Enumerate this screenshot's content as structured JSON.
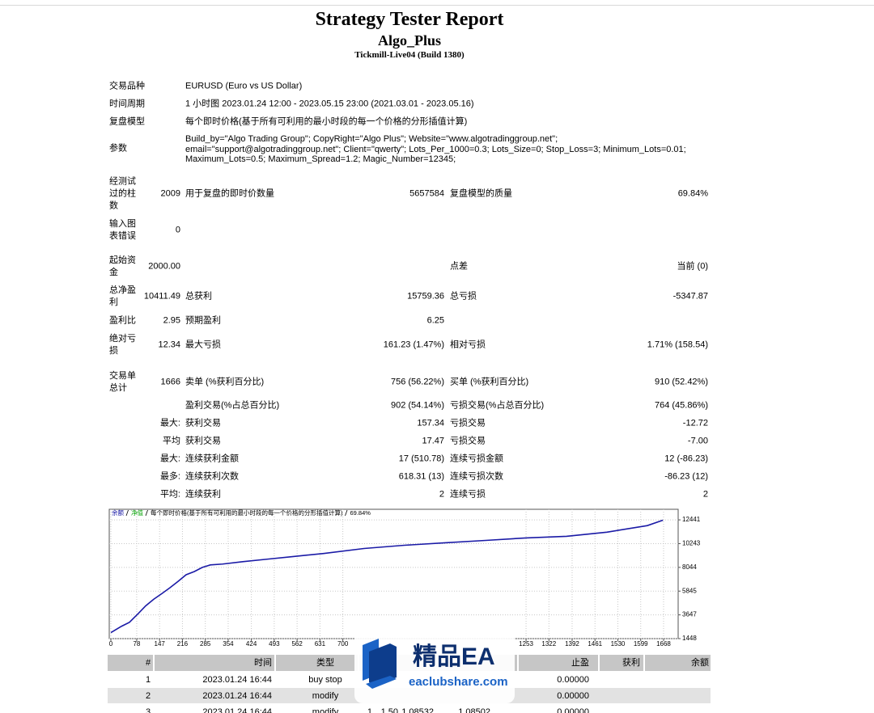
{
  "header": {
    "title": "Strategy Tester Report",
    "subtitle": "Algo_Plus",
    "server": "Tickmill-Live04 (Build 1380)"
  },
  "info": [
    {
      "label": "交易品种",
      "value": "EURUSD (Euro vs US Dollar)"
    },
    {
      "label": "时间周期",
      "value": "1 小时图 2023.01.24 12:00 - 2023.05.15 23:00 (2021.03.01 - 2023.05.16)"
    },
    {
      "label": "复盘模型",
      "value": "每个即时价格(基于所有可利用的最小时段的每一个价格的分形插值计算)"
    }
  ],
  "parameters": {
    "label": "参数",
    "lines": [
      "Build_by=\"Algo Trading Group\"; CopyRight=\"Algo Plus\"; Website=\"www.algotradinggroup.net\";",
      "email=\"support@algotradinggroup.net\"; Client=\"qwerty\"; Lots_Per_1000=0.3; Lots_Size=0; Stop_Loss=3; Minimum_Lots=0.01;",
      "Maximum_Lots=0.5; Maximum_Spread=1.2; Magic_Number=12345;"
    ]
  },
  "stats": [
    [
      "经测试过的柱数",
      "2009",
      "用于复盘的即时价数量",
      "5657584",
      "复盘模型的质量",
      "69.84%"
    ],
    [
      "输入图表错误",
      "0",
      null,
      null,
      null,
      null
    ],
    [
      "起始资金",
      "2000.00",
      null,
      null,
      "点差",
      "当前 (0)"
    ],
    [
      "总净盈利",
      "10411.49",
      "总获利",
      "15759.36",
      "总亏损",
      "-5347.87"
    ],
    [
      "盈利比",
      "2.95",
      "预期盈利",
      "6.25",
      null,
      null
    ],
    [
      "绝对亏损",
      "12.34",
      "最大亏损",
      "161.23 (1.47%)",
      "相对亏损",
      "1.71% (158.54)"
    ],
    [
      "交易单总计",
      "1666",
      "卖单 (%获利百分比)",
      "756 (56.22%)",
      "买单 (%获利百分比)",
      "910 (52.42%)"
    ],
    [
      null,
      null,
      "盈利交易(%占总百分比)",
      "902 (54.14%)",
      "亏损交易(%占总百分比)",
      "764 (45.86%)"
    ],
    [
      null,
      "最大:",
      "获利交易",
      "157.34",
      "亏损交易",
      "-12.72"
    ],
    [
      null,
      "平均",
      "获利交易",
      "17.47",
      "亏损交易",
      "-7.00"
    ],
    [
      null,
      "最大:",
      "连续获利金额",
      "17 (510.78)",
      "连续亏损金额",
      "12 (-86.23)"
    ],
    [
      null,
      "最多:",
      "连续获利次数",
      "618.31 (13)",
      "连续亏损次数",
      "-86.23 (12)"
    ],
    [
      null,
      "平均:",
      "连续获利",
      "2",
      "连续亏损",
      "2"
    ]
  ],
  "chart_data": {
    "type": "line",
    "legend_note": "每个即时价格(基于所有可利用的最小时段的每一个价格的分形插值计算)",
    "quality": "69.84%",
    "equity_label": "净值",
    "equity_color": "#00a000",
    "x": [
      0,
      32,
      56,
      81,
      105,
      129,
      154,
      178,
      203,
      227,
      252,
      276,
      300,
      337,
      398,
      471,
      545,
      642,
      764,
      886,
      1009,
      1131,
      1253,
      1375,
      1497,
      1619,
      1666
    ],
    "series": [
      {
        "name": "余额",
        "color": "#1a1aa6",
        "values": [
          2000,
          2590,
          2960,
          3720,
          4480,
          5090,
          5620,
          6150,
          6750,
          7360,
          7660,
          8040,
          8270,
          8350,
          8570,
          8800,
          9030,
          9330,
          9790,
          10090,
          10320,
          10540,
          10770,
          10920,
          11300,
          11910,
          12410
        ]
      }
    ],
    "xlim": [
      0,
      1712
    ],
    "ylim": [
      1448,
      13420
    ],
    "xticks": [
      0,
      78,
      147,
      216,
      285,
      354,
      424,
      493,
      562,
      631,
      700,
      1253,
      1322,
      1392,
      1461,
      1530,
      1599,
      1668
    ],
    "yticks": [
      1448,
      3647,
      5845,
      8044,
      10243,
      12441
    ],
    "grid": true
  },
  "trades": {
    "header": {
      "no": "#",
      "time": "时间",
      "type": "类型",
      "tp": "止盈",
      "profit": "获利",
      "balance": "余额"
    },
    "rows": [
      {
        "no": "1",
        "time": "2023.01.24 16:44",
        "type": "buy stop",
        "tp": "0.00000"
      },
      {
        "no": "2",
        "time": "2023.01.24 16:44",
        "type": "modify",
        "tp": "0.00000"
      },
      {
        "no": "3",
        "time": "2023.01.24 16:44",
        "type": "modify",
        "order": "1",
        "lots": "1.50",
        "price": "1.08532",
        "sl": "1.08502",
        "tp": "0.00000"
      }
    ]
  },
  "watermark": {
    "brand": "精品EA",
    "site": "eaclubshare.com"
  }
}
